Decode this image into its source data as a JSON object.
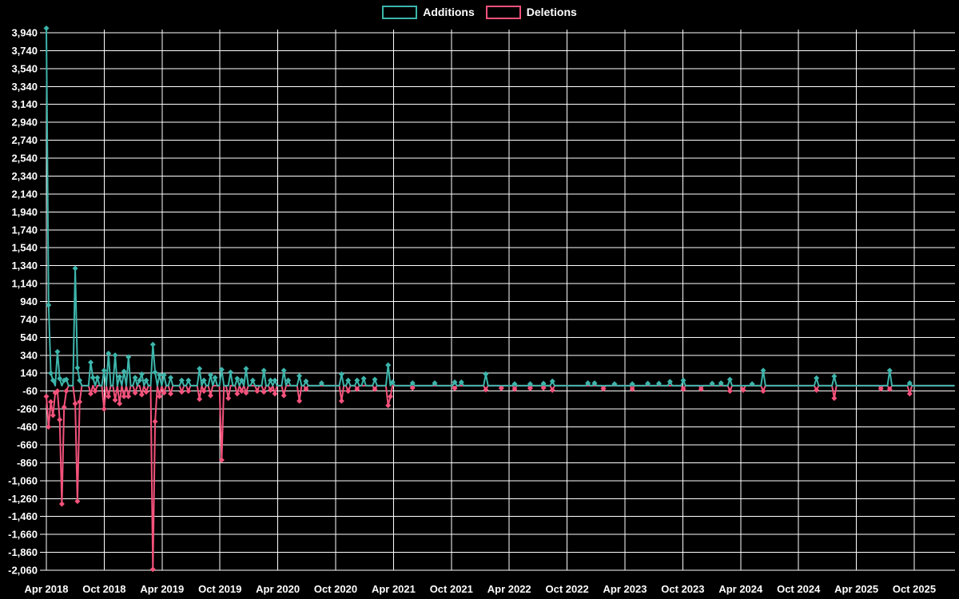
{
  "page": {
    "background": "#000000"
  },
  "legend": {
    "items": [
      {
        "label": "Additions",
        "color": "#3db5ab"
      },
      {
        "label": "Deletions",
        "color": "#f4527b"
      }
    ]
  },
  "chart_data": {
    "type": "line",
    "title": "",
    "legend_position": "top-center",
    "grid": true,
    "colors": {
      "background": "#000000",
      "grid": "#ffffff",
      "text": "#ffffff"
    },
    "axis": {
      "y_min": -2060,
      "y_max": 3940,
      "y_step": 200,
      "x_start_label": "Apr 2018",
      "x_end_label": "Oct 2025"
    },
    "y_tick_labels": [
      "3,940",
      "3,740",
      "3,540",
      "3,340",
      "3,140",
      "2,940",
      "2,740",
      "2,540",
      "2,340",
      "2,140",
      "1,940",
      "1,740",
      "1,540",
      "1,340",
      "1,140",
      "940",
      "740",
      "540",
      "340",
      "140",
      "-60",
      "-260",
      "-460",
      "-660",
      "-860",
      "-1,060",
      "-1,260",
      "-1,460",
      "-1,660",
      "-1,860",
      "-2,060"
    ],
    "x_tick_labels": [
      "Apr 2018",
      "Oct 2018",
      "Apr 2019",
      "Oct 2019",
      "Apr 2020",
      "Oct 2020",
      "Apr 2021",
      "Oct 2021",
      "Apr 2022",
      "Oct 2022",
      "Apr 2023",
      "Oct 2023",
      "Apr 2024",
      "Oct 2024",
      "Apr 2025",
      "Oct 2025"
    ],
    "x_unit": "week index from Apr 2018; weeks not listed in points have value 0",
    "weeks_total": 410,
    "series": [
      {
        "name": "Additions",
        "color": "#3db5ab",
        "points": [
          [
            0,
            3990
          ],
          [
            1,
            900
          ],
          [
            2,
            140
          ],
          [
            3,
            60
          ],
          [
            5,
            380
          ],
          [
            6,
            80
          ],
          [
            8,
            60
          ],
          [
            9,
            70
          ],
          [
            13,
            1310
          ],
          [
            14,
            200
          ],
          [
            15,
            60
          ],
          [
            20,
            260
          ],
          [
            21,
            90
          ],
          [
            23,
            90
          ],
          [
            26,
            170
          ],
          [
            28,
            360
          ],
          [
            31,
            340
          ],
          [
            33,
            100
          ],
          [
            35,
            160
          ],
          [
            37,
            320
          ],
          [
            40,
            90
          ],
          [
            42,
            60
          ],
          [
            43,
            130
          ],
          [
            45,
            60
          ],
          [
            48,
            460
          ],
          [
            49,
            150
          ],
          [
            51,
            120
          ],
          [
            53,
            120
          ],
          [
            56,
            90
          ],
          [
            61,
            60
          ],
          [
            64,
            60
          ],
          [
            69,
            190
          ],
          [
            71,
            60
          ],
          [
            74,
            120
          ],
          [
            76,
            90
          ],
          [
            79,
            180
          ],
          [
            83,
            150
          ],
          [
            86,
            80
          ],
          [
            88,
            60
          ],
          [
            90,
            190
          ],
          [
            93,
            60
          ],
          [
            98,
            170
          ],
          [
            101,
            60
          ],
          [
            103,
            60
          ],
          [
            107,
            170
          ],
          [
            109,
            60
          ],
          [
            114,
            110
          ],
          [
            117,
            50
          ],
          [
            124,
            30
          ],
          [
            133,
            130
          ],
          [
            136,
            60
          ],
          [
            140,
            60
          ],
          [
            143,
            80
          ],
          [
            148,
            70
          ],
          [
            154,
            230
          ],
          [
            156,
            40
          ],
          [
            165,
            30
          ],
          [
            175,
            30
          ],
          [
            184,
            40
          ],
          [
            187,
            40
          ],
          [
            198,
            130
          ],
          [
            211,
            20
          ],
          [
            218,
            20
          ],
          [
            224,
            25
          ],
          [
            228,
            50
          ],
          [
            244,
            30
          ],
          [
            247,
            30
          ],
          [
            256,
            20
          ],
          [
            264,
            20
          ],
          [
            271,
            25
          ],
          [
            276,
            25
          ],
          [
            281,
            45
          ],
          [
            287,
            60
          ],
          [
            300,
            25
          ],
          [
            304,
            30
          ],
          [
            308,
            70
          ],
          [
            318,
            20
          ],
          [
            323,
            170
          ],
          [
            347,
            85
          ],
          [
            355,
            105
          ],
          [
            380,
            170
          ],
          [
            389,
            30
          ]
        ]
      },
      {
        "name": "Deletions",
        "color": "#f4527b",
        "points": [
          [
            0,
            -120
          ],
          [
            1,
            -460
          ],
          [
            2,
            -180
          ],
          [
            3,
            -330
          ],
          [
            4,
            -80
          ],
          [
            5,
            -60
          ],
          [
            6,
            -380
          ],
          [
            7,
            -1320
          ],
          [
            8,
            -240
          ],
          [
            9,
            -60
          ],
          [
            13,
            -200
          ],
          [
            14,
            -1290
          ],
          [
            15,
            -180
          ],
          [
            20,
            -90
          ],
          [
            22,
            -60
          ],
          [
            26,
            -260
          ],
          [
            28,
            -120
          ],
          [
            31,
            -160
          ],
          [
            33,
            -200
          ],
          [
            35,
            -120
          ],
          [
            37,
            -120
          ],
          [
            40,
            -80
          ],
          [
            43,
            -100
          ],
          [
            45,
            -70
          ],
          [
            48,
            -2050
          ],
          [
            49,
            -400
          ],
          [
            51,
            -120
          ],
          [
            53,
            -80
          ],
          [
            56,
            -90
          ],
          [
            61,
            -70
          ],
          [
            64,
            -60
          ],
          [
            69,
            -150
          ],
          [
            71,
            -60
          ],
          [
            74,
            -110
          ],
          [
            79,
            -830
          ],
          [
            82,
            -140
          ],
          [
            86,
            -90
          ],
          [
            88,
            -60
          ],
          [
            90,
            -80
          ],
          [
            95,
            -60
          ],
          [
            98,
            -70
          ],
          [
            101,
            -50
          ],
          [
            103,
            -90
          ],
          [
            107,
            -110
          ],
          [
            114,
            -170
          ],
          [
            117,
            -40
          ],
          [
            133,
            -170
          ],
          [
            136,
            -60
          ],
          [
            140,
            -40
          ],
          [
            148,
            -40
          ],
          [
            154,
            -220
          ],
          [
            155,
            -120
          ],
          [
            165,
            -25
          ],
          [
            184,
            -30
          ],
          [
            198,
            -45
          ],
          [
            205,
            -30
          ],
          [
            211,
            -40
          ],
          [
            218,
            -30
          ],
          [
            224,
            -25
          ],
          [
            228,
            -50
          ],
          [
            251,
            -35
          ],
          [
            264,
            -40
          ],
          [
            287,
            -40
          ],
          [
            295,
            -40
          ],
          [
            308,
            -60
          ],
          [
            314,
            -50
          ],
          [
            323,
            -60
          ],
          [
            347,
            -50
          ],
          [
            355,
            -140
          ],
          [
            376,
            -35
          ],
          [
            380,
            -40
          ],
          [
            389,
            -90
          ]
        ]
      }
    ]
  }
}
